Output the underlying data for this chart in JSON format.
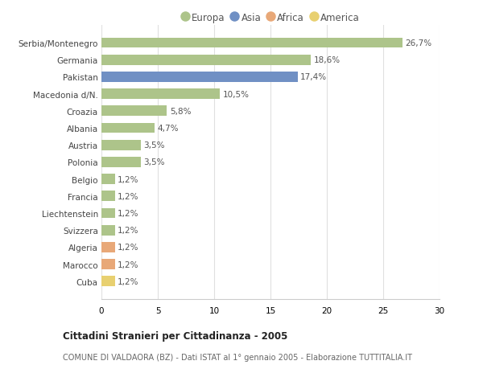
{
  "countries": [
    "Serbia/Montenegro",
    "Germania",
    "Pakistan",
    "Macedonia d/N.",
    "Croazia",
    "Albania",
    "Austria",
    "Polonia",
    "Belgio",
    "Francia",
    "Liechtenstein",
    "Svizzera",
    "Algeria",
    "Marocco",
    "Cuba"
  ],
  "values": [
    26.7,
    18.6,
    17.4,
    10.5,
    5.8,
    4.7,
    3.5,
    3.5,
    1.2,
    1.2,
    1.2,
    1.2,
    1.2,
    1.2,
    1.2
  ],
  "labels": [
    "26,7%",
    "18,6%",
    "17,4%",
    "10,5%",
    "5,8%",
    "4,7%",
    "3,5%",
    "3,5%",
    "1,2%",
    "1,2%",
    "1,2%",
    "1,2%",
    "1,2%",
    "1,2%",
    "1,2%"
  ],
  "continents": [
    "Europa",
    "Europa",
    "Asia",
    "Europa",
    "Europa",
    "Europa",
    "Europa",
    "Europa",
    "Europa",
    "Europa",
    "Europa",
    "Europa",
    "Africa",
    "Africa",
    "America"
  ],
  "colors": {
    "Europa": "#adc48a",
    "Asia": "#7090c4",
    "Africa": "#e8a878",
    "America": "#e8d070"
  },
  "legend_colors": {
    "Europa": "#adc48a",
    "Asia": "#7090c4",
    "Africa": "#e8a878",
    "America": "#e8d070"
  },
  "title1": "Cittadini Stranieri per Cittadinanza - 2005",
  "title2": "COMUNE DI VALDAORA (BZ) - Dati ISTAT al 1° gennaio 2005 - Elaborazione TUTTITALIA.IT",
  "xlim": [
    0,
    30
  ],
  "xticks": [
    0,
    5,
    10,
    15,
    20,
    25,
    30
  ],
  "background_color": "#ffffff",
  "grid_color": "#e0e0e0"
}
